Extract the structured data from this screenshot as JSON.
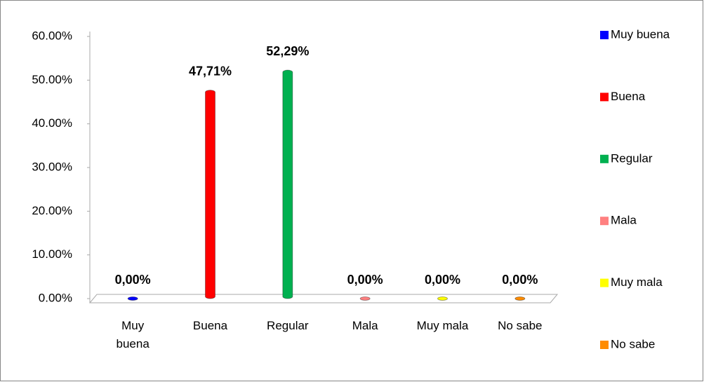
{
  "chart_data": {
    "type": "bar",
    "categories": [
      "Muy buena",
      "Buena",
      "Regular",
      "Mala",
      "Muy mala",
      "No sabe"
    ],
    "values": [
      0,
      47.71,
      52.29,
      0,
      0,
      0
    ],
    "value_labels": [
      "0,00%",
      "47,71%",
      "52,29%",
      "0,00%",
      "0,00%",
      "0,00%"
    ],
    "colors": [
      "#0000ff",
      "#ff0000",
      "#00b050",
      "#ff8080",
      "#ffff00",
      "#ff8c00"
    ],
    "ylim": [
      0,
      60
    ],
    "yticks": [
      {
        "value": 0,
        "label": "0.00%"
      },
      {
        "value": 10,
        "label": "10.00%"
      },
      {
        "value": 20,
        "label": "20.00%"
      },
      {
        "value": 30,
        "label": "30.00%"
      },
      {
        "value": 40,
        "label": "40.00%"
      },
      {
        "value": 50,
        "label": "50.00%"
      },
      {
        "value": 60,
        "label": "60.00%"
      }
    ],
    "legend": "right"
  }
}
